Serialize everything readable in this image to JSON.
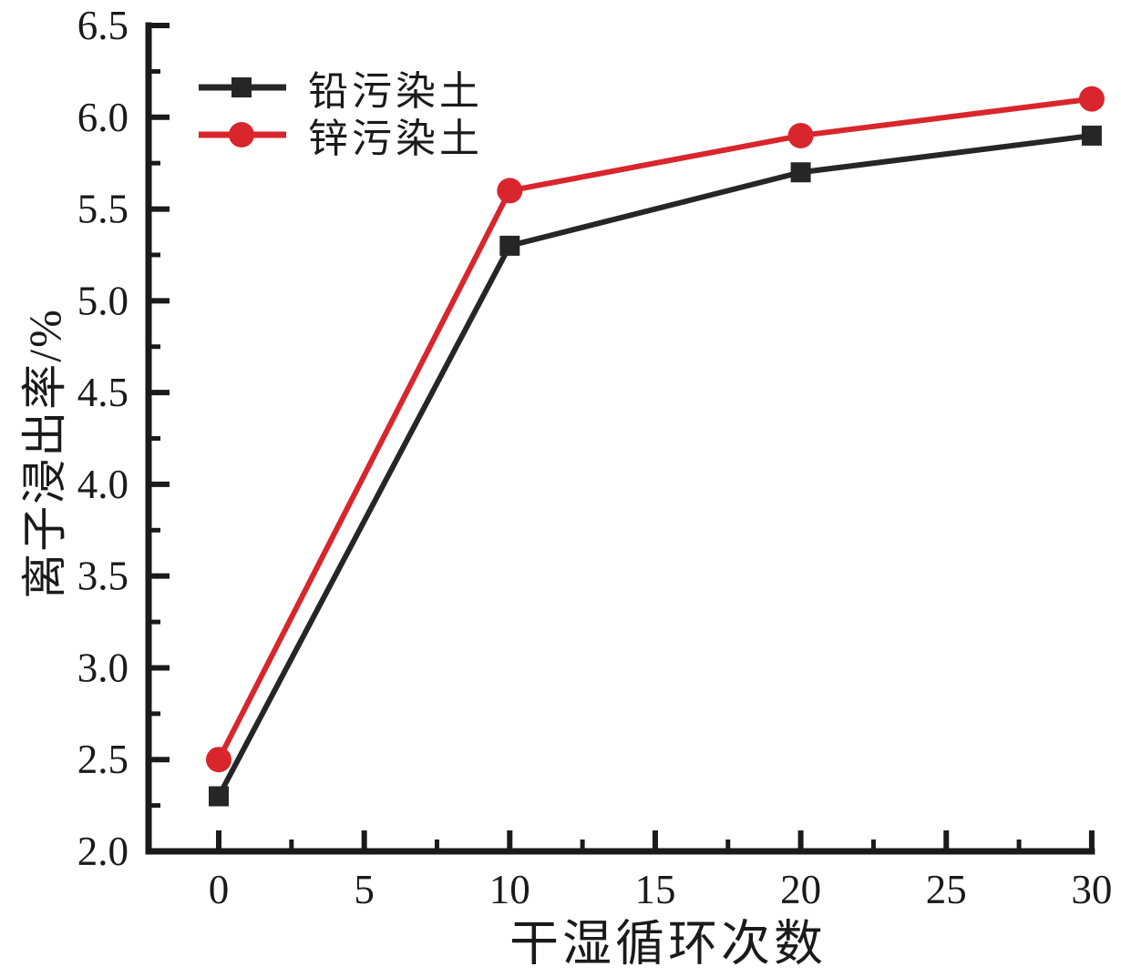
{
  "chart_data": {
    "type": "line",
    "title": "",
    "xlabel": "干湿循环次数",
    "ylabel": "离子浸出率/%",
    "x": [
      0,
      10,
      20,
      30
    ],
    "series": [
      {
        "name": "铅污染土",
        "values": [
          2.3,
          5.3,
          5.7,
          5.9
        ],
        "color": "#262626",
        "marker": "square"
      },
      {
        "name": "锌污染土",
        "values": [
          2.5,
          5.6,
          5.9,
          6.1
        ],
        "color": "#d8262c",
        "marker": "circle"
      }
    ],
    "xlim": [
      -2.7,
      30
    ],
    "ylim": [
      2.0,
      6.5
    ],
    "x_ticks": [
      0,
      5,
      10,
      15,
      20,
      25,
      30
    ],
    "x_tick_labels": [
      "0",
      "5",
      "10",
      "15",
      "20",
      "25",
      "30"
    ],
    "x_minor_step": 2.5,
    "y_ticks": [
      2.0,
      2.5,
      3.0,
      3.5,
      4.0,
      4.5,
      5.0,
      5.5,
      6.0,
      6.5
    ],
    "y_tick_labels": [
      "2.0",
      "2.5",
      "3.0",
      "3.5",
      "4.0",
      "4.5",
      "5.0",
      "5.5",
      "6.0",
      "6.5"
    ],
    "y_minor_step": 0.25,
    "grid": false,
    "legend_position": "top-left",
    "axis_color": "#1a1a1a",
    "background_color": "#ffffff"
  }
}
